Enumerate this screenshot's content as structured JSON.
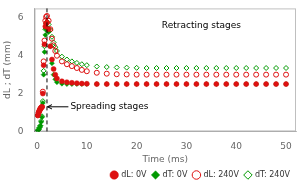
{
  "chart_data": {
    "type": "scatter",
    "xlabel": "Time (ms)",
    "ylabel": "dL ; dT (mm)",
    "xlim": [
      -0.5,
      52
    ],
    "ylim": [
      0,
      6.5
    ],
    "xticks": [
      0,
      10,
      20,
      30,
      40,
      50
    ],
    "yticks": [
      0,
      2,
      4,
      6
    ],
    "grid": false,
    "legend": "lower right",
    "vlines": [
      {
        "x": 2.0,
        "color": "#000000",
        "line_style": "dashed"
      }
    ],
    "annotations": [
      {
        "text": "Spreading stages",
        "x": 6.5,
        "y": 1.3,
        "arrow_x": 2.1,
        "arrow_y": 1.3
      },
      {
        "text": "Retracting stages",
        "x": 33,
        "y": 5.6
      }
    ],
    "series": [
      {
        "name": "dL: 0V",
        "color": "#dd1111",
        "marker": "circle",
        "x": [
          0.17,
          0.33,
          0.5,
          0.67,
          0.83,
          1.0,
          1.17,
          1.33,
          1.5,
          1.67,
          1.83,
          2.0,
          2.33,
          2.67,
          3.0,
          3.33,
          3.67,
          4.0,
          5.0,
          6.0,
          7.0,
          8.0,
          9.0,
          10.0,
          12.0,
          14.0,
          16.0,
          18.0,
          20.0,
          22.0,
          24.0,
          26.0,
          28.0,
          30.0,
          32.0,
          34.0,
          36.0,
          38.0,
          40.0,
          42.0,
          44.0,
          46.0,
          48.0,
          50.0
        ],
        "values": [
          0.85,
          1.0,
          1.1,
          1.2,
          1.25,
          1.3,
          2.0,
          3.5,
          4.6,
          5.55,
          5.7,
          5.75,
          5.4,
          4.5,
          3.8,
          3.3,
          3.0,
          2.8,
          2.65,
          2.6,
          2.57,
          2.55,
          2.53,
          2.52,
          2.5,
          2.5,
          2.5,
          2.5,
          2.5,
          2.5,
          2.5,
          2.5,
          2.5,
          2.5,
          2.5,
          2.5,
          2.5,
          2.5,
          2.5,
          2.5,
          2.5,
          2.5,
          2.5,
          2.5
        ]
      },
      {
        "name": "dL: 240V",
        "color": "#dd1111",
        "marker": "circle_open",
        "x": [
          0.17,
          0.33,
          0.5,
          0.67,
          0.83,
          1.0,
          1.17,
          1.33,
          1.5,
          1.67,
          1.83,
          2.0,
          2.33,
          2.67,
          3.0,
          3.33,
          3.67,
          4.0,
          5.0,
          6.0,
          7.0,
          8.0,
          9.0,
          10.0,
          12.0,
          14.0,
          16.0,
          18.0,
          20.0,
          22.0,
          24.0,
          26.0,
          28.0,
          30.0,
          32.0,
          34.0,
          36.0,
          38.0,
          40.0,
          42.0,
          44.0,
          46.0,
          48.0,
          50.0
        ],
        "values": [
          0.85,
          1.0,
          1.1,
          1.2,
          1.25,
          1.3,
          2.1,
          3.7,
          4.8,
          5.85,
          6.05,
          6.1,
          5.85,
          5.4,
          4.9,
          4.55,
          4.25,
          4.0,
          3.7,
          3.55,
          3.45,
          3.35,
          3.25,
          3.18,
          3.1,
          3.05,
          3.02,
          3.01,
          3.0,
          3.0,
          3.0,
          3.0,
          3.0,
          3.0,
          3.0,
          3.0,
          3.0,
          3.0,
          3.0,
          3.0,
          3.0,
          3.0,
          3.0,
          3.0
        ]
      },
      {
        "name": "dT: 0V",
        "color": "#009900",
        "marker": "diamond",
        "x": [
          0.17,
          0.33,
          0.5,
          0.67,
          0.83,
          1.0,
          1.17,
          1.33,
          1.5,
          1.67,
          1.83,
          2.0,
          2.33,
          2.67,
          3.0,
          3.33,
          3.67,
          4.0,
          5.0,
          6.0,
          7.0,
          8.0,
          9.0,
          10.0,
          12.0,
          14.0,
          16.0,
          18.0,
          20.0,
          22.0,
          24.0,
          26.0,
          28.0,
          30.0,
          32.0,
          34.0,
          36.0,
          38.0,
          40.0,
          42.0,
          44.0,
          46.0,
          48.0,
          50.0
        ],
        "values": [
          0.05,
          0.1,
          0.2,
          0.3,
          0.5,
          0.75,
          1.5,
          3.0,
          4.2,
          5.1,
          5.4,
          5.5,
          5.25,
          4.5,
          3.6,
          3.0,
          2.75,
          2.6,
          2.52,
          2.5,
          2.5,
          2.5,
          2.5,
          2.5,
          2.5,
          2.5,
          2.5,
          2.5,
          2.5,
          2.5,
          2.5,
          2.5,
          2.5,
          2.5,
          2.5,
          2.5,
          2.5,
          2.5,
          2.5,
          2.5,
          2.5,
          2.5,
          2.5,
          2.5
        ]
      },
      {
        "name": "dT: 240V",
        "color": "#009900",
        "marker": "diamond_open",
        "x": [
          0.17,
          0.33,
          0.5,
          0.67,
          0.83,
          1.0,
          1.17,
          1.33,
          1.5,
          1.67,
          1.83,
          2.0,
          2.33,
          2.67,
          3.0,
          3.33,
          3.67,
          4.0,
          5.0,
          6.0,
          7.0,
          8.0,
          9.0,
          10.0,
          12.0,
          14.0,
          16.0,
          18.0,
          20.0,
          22.0,
          24.0,
          26.0,
          28.0,
          30.0,
          32.0,
          34.0,
          36.0,
          38.0,
          40.0,
          42.0,
          44.0,
          46.0,
          48.0,
          50.0
        ],
        "values": [
          0.05,
          0.1,
          0.2,
          0.3,
          0.55,
          0.8,
          1.6,
          3.2,
          4.5,
          5.4,
          5.7,
          5.8,
          5.65,
          5.35,
          5.0,
          4.7,
          4.45,
          4.25,
          3.95,
          3.8,
          3.7,
          3.62,
          3.55,
          3.5,
          3.43,
          3.4,
          3.38,
          3.37,
          3.36,
          3.35,
          3.35,
          3.35,
          3.35,
          3.35,
          3.35,
          3.35,
          3.35,
          3.35,
          3.35,
          3.35,
          3.35,
          3.35,
          3.35,
          3.35
        ]
      }
    ]
  }
}
